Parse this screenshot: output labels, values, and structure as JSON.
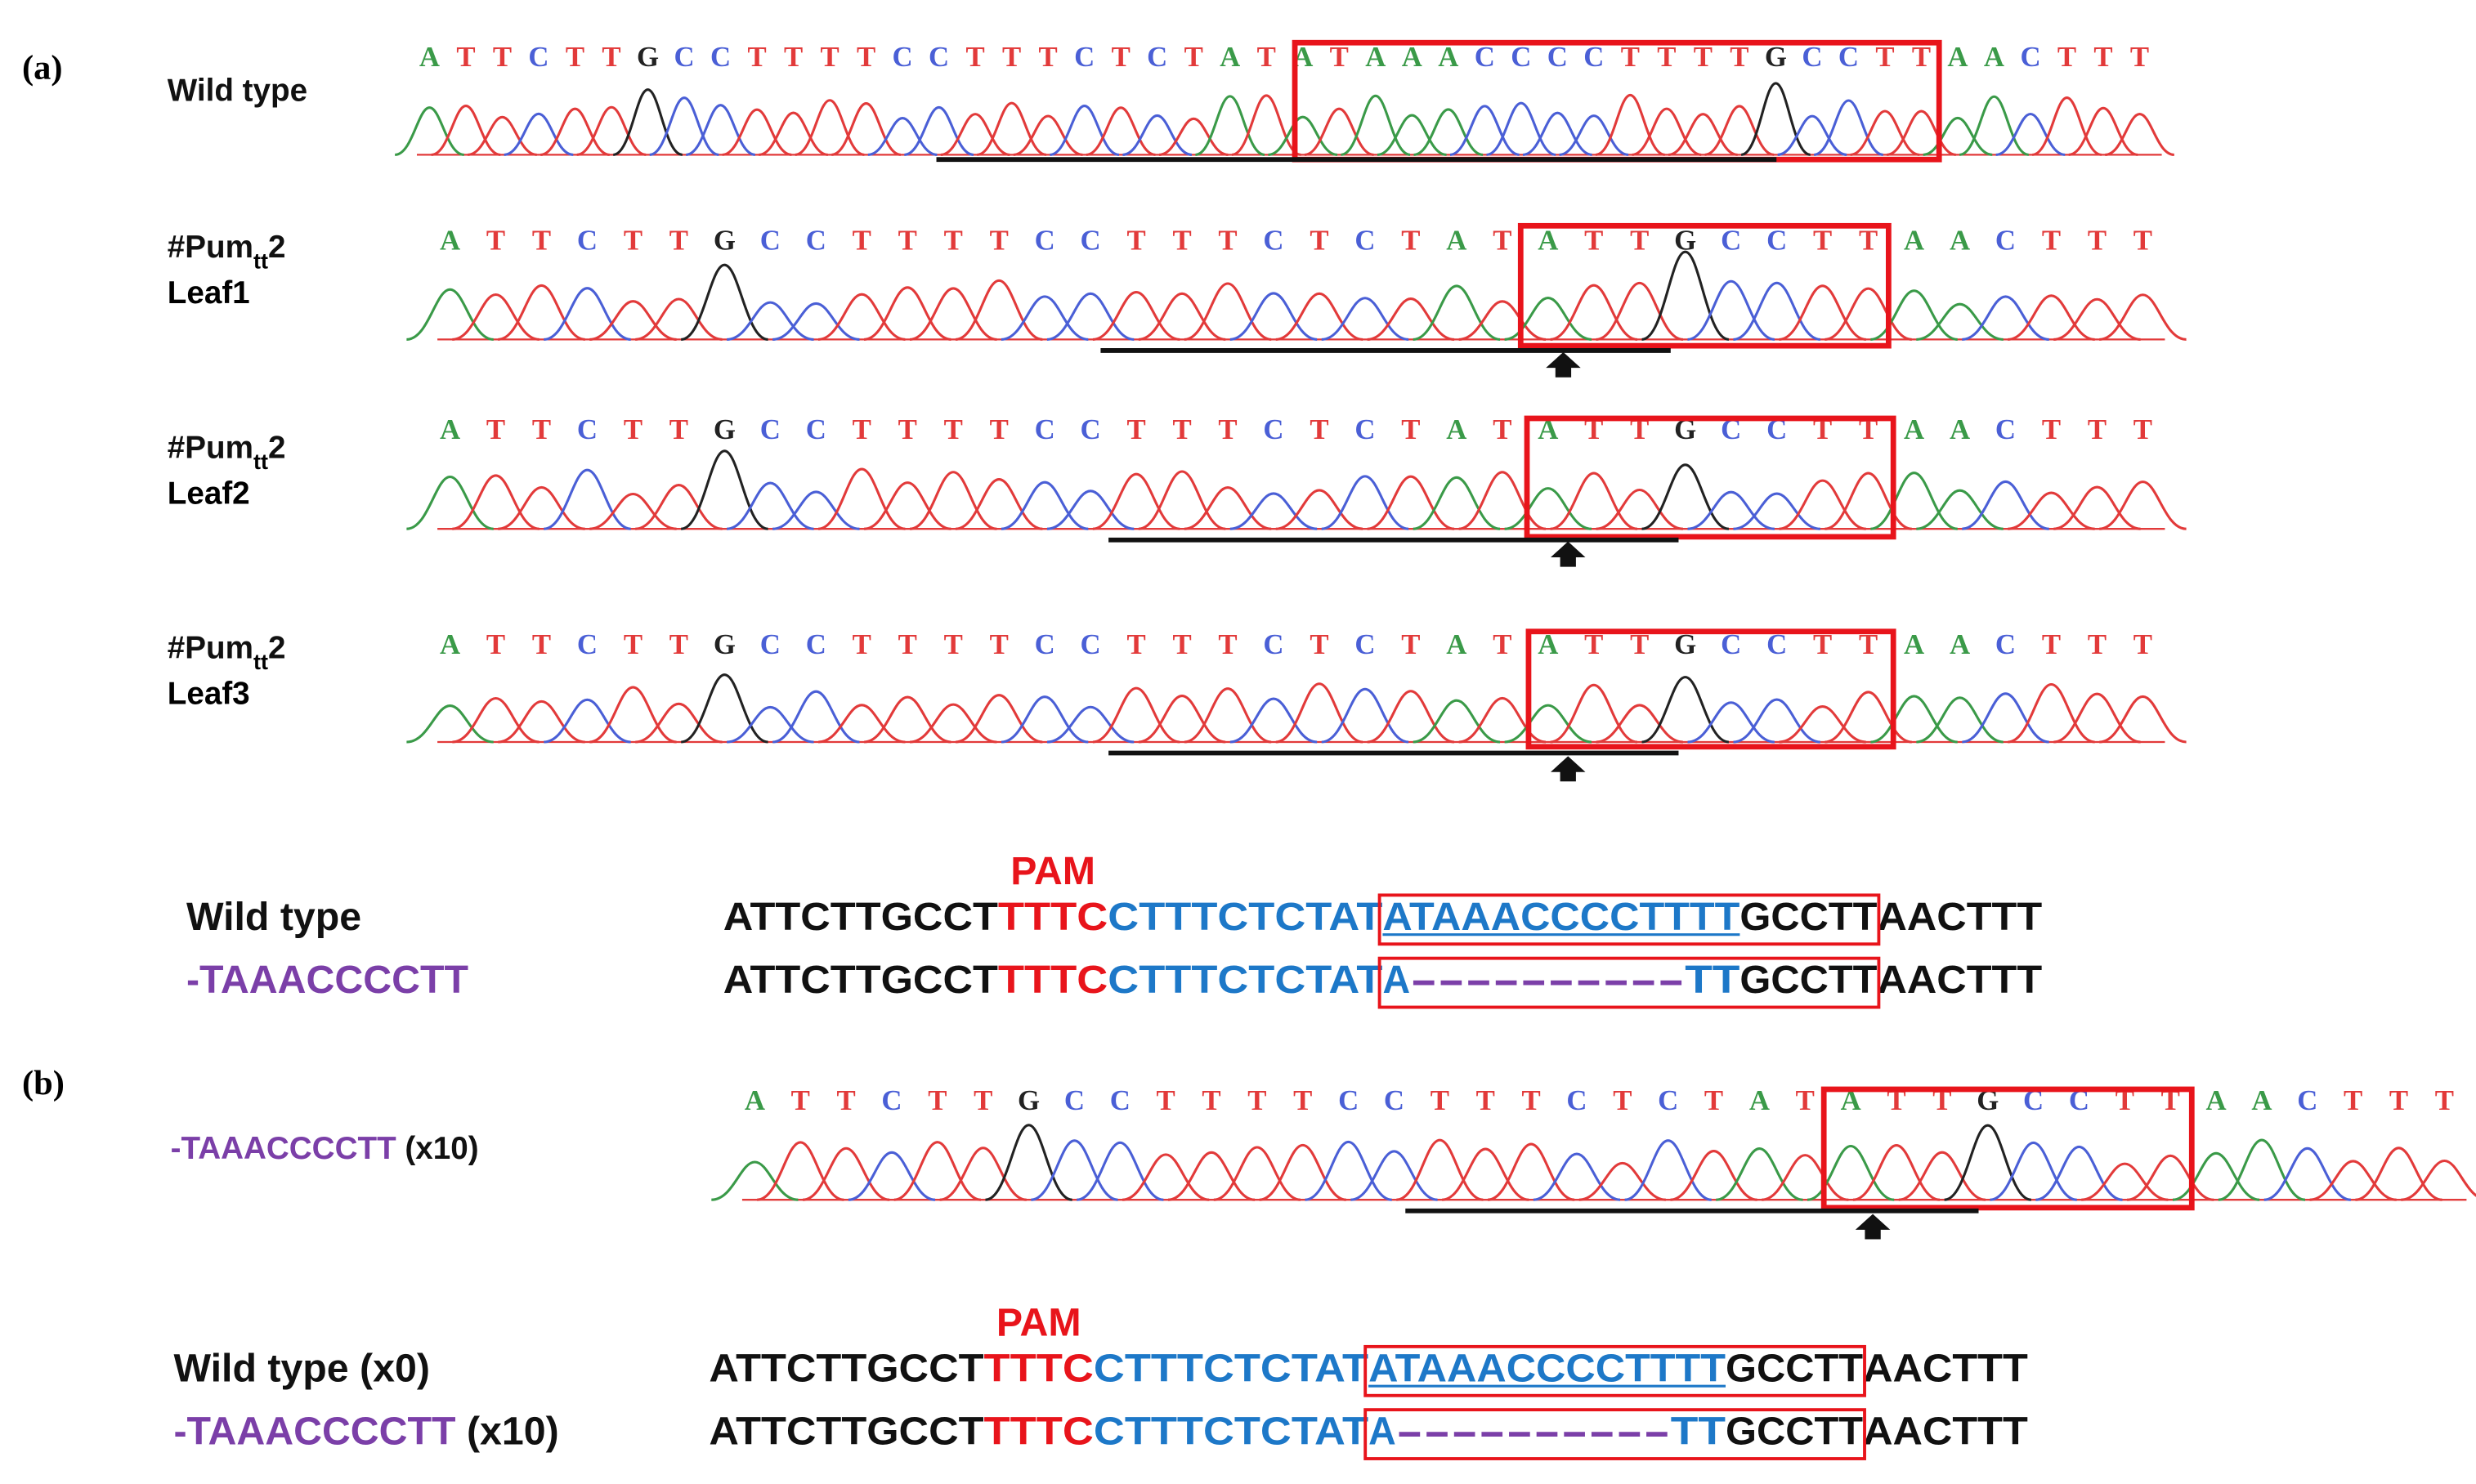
{
  "base_colors": {
    "A": "#3a9a48",
    "T": "#e23a3a",
    "C": "#4a5fd6",
    "G": "#222222"
  },
  "panel_a": {
    "label": "(a)",
    "traces": [
      {
        "name": {
          "text": "Wild type"
        },
        "bases": [
          "A",
          "T",
          "T",
          "C",
          "T",
          "T",
          "G",
          "C",
          "C",
          "T",
          "T",
          "T",
          "T",
          "C",
          "C",
          "T",
          "T",
          "T",
          "C",
          "T",
          "C",
          "T",
          "A",
          "T",
          "A",
          "T",
          "A",
          "A",
          "A",
          "C",
          "C",
          "C",
          "C",
          "T",
          "T",
          "T",
          "T",
          "G",
          "C",
          "C",
          "T",
          "T",
          "A",
          "A",
          "C",
          "T",
          "T",
          "T"
        ]
      },
      {
        "name": {
          "text": "#Pum",
          "sub": "tt",
          "suffix": "2"
        },
        "sample": "Leaf1",
        "bases": [
          "A",
          "T",
          "T",
          "C",
          "T",
          "T",
          "G",
          "C",
          "C",
          "T",
          "T",
          "T",
          "T",
          "C",
          "C",
          "T",
          "T",
          "T",
          "C",
          "T",
          "C",
          "T",
          "A",
          "T",
          "A",
          "T",
          "T",
          "G",
          "C",
          "C",
          "T",
          "T",
          "A",
          "A",
          "C",
          "T",
          "T",
          "T"
        ]
      },
      {
        "name": {
          "text": "#Pum",
          "sub": "tt",
          "suffix": "2"
        },
        "sample": "Leaf2",
        "bases": [
          "A",
          "T",
          "T",
          "C",
          "T",
          "T",
          "G",
          "C",
          "C",
          "T",
          "T",
          "T",
          "T",
          "C",
          "C",
          "T",
          "T",
          "T",
          "C",
          "T",
          "C",
          "T",
          "A",
          "T",
          "A",
          "T",
          "T",
          "G",
          "C",
          "C",
          "T",
          "T",
          "A",
          "A",
          "C",
          "T",
          "T",
          "T"
        ]
      },
      {
        "name": {
          "text": "#Pum",
          "sub": "tt",
          "suffix": "2"
        },
        "sample": "Leaf3",
        "bases": [
          "A",
          "T",
          "T",
          "C",
          "T",
          "T",
          "G",
          "C",
          "C",
          "T",
          "T",
          "T",
          "T",
          "C",
          "C",
          "T",
          "T",
          "T",
          "C",
          "T",
          "C",
          "T",
          "A",
          "T",
          "A",
          "T",
          "T",
          "G",
          "C",
          "C",
          "T",
          "T",
          "A",
          "A",
          "C",
          "T",
          "T",
          "T"
        ]
      }
    ],
    "alignment": {
      "pam": "PAM",
      "rows": [
        {
          "label": [
            {
              "text": "Wild type",
              "color": "#111111"
            }
          ],
          "segments": [
            {
              "text": "ATTCTTGCCT",
              "color": "#111111"
            },
            {
              "text": "TTTC",
              "color": "#e8141b"
            },
            {
              "text": "CTTTCTCTAT",
              "color": "#1d78c8"
            },
            {
              "text": "ATAAACCCCTTTT",
              "color": "#1d78c8",
              "underline": true
            },
            {
              "text": "GCCTT",
              "color": "#111111"
            },
            {
              "text": "AACTTT",
              "color": "#111111"
            }
          ]
        },
        {
          "label": [
            {
              "text": "-TAAACCCCTT",
              "color": "#7b3fa8"
            }
          ],
          "segments": [
            {
              "text": "ATTCTTGCCT",
              "color": "#111111"
            },
            {
              "text": "TTTC",
              "color": "#e8141b"
            },
            {
              "text": "CTTTCTCTAT",
              "color": "#1d78c8"
            },
            {
              "text": "A",
              "color": "#1d78c8"
            },
            {
              "text": "----------",
              "color": "#7b3fa8"
            },
            {
              "text": "TT",
              "color": "#1d78c8"
            },
            {
              "text": "GCCTT",
              "color": "#111111"
            },
            {
              "text": "AACTTT",
              "color": "#111111"
            }
          ]
        }
      ]
    }
  },
  "panel_b": {
    "label": "(b)",
    "traces": [
      {
        "name": {
          "text": "-TAAACCCCTT",
          "suffix": " (x10)"
        },
        "bases": [
          "A",
          "T",
          "T",
          "C",
          "T",
          "T",
          "G",
          "C",
          "C",
          "T",
          "T",
          "T",
          "T",
          "C",
          "C",
          "T",
          "T",
          "T",
          "C",
          "T",
          "C",
          "T",
          "A",
          "T",
          "A",
          "T",
          "T",
          "G",
          "C",
          "C",
          "T",
          "T",
          "A",
          "A",
          "C",
          "T",
          "T",
          "T"
        ]
      }
    ],
    "alignment": {
      "pam": "PAM",
      "rows": [
        {
          "label": [
            {
              "text": "Wild type (x0)",
              "color": "#111111"
            }
          ],
          "segments": [
            {
              "text": "ATTCTTGCCT",
              "color": "#111111"
            },
            {
              "text": "TTTC",
              "color": "#e8141b"
            },
            {
              "text": "CTTTCTCTAT",
              "color": "#1d78c8"
            },
            {
              "text": "ATAAACCCCTTTT",
              "color": "#1d78c8",
              "underline": true
            },
            {
              "text": "GCCTT",
              "color": "#111111"
            },
            {
              "text": "AACTTT",
              "color": "#111111"
            }
          ]
        },
        {
          "label": [
            {
              "text": "-TAAACCCCTT",
              "color": "#7b3fa8"
            },
            {
              "text": " (x10)",
              "color": "#111111"
            }
          ],
          "segments": [
            {
              "text": "ATTCTTGCCT",
              "color": "#111111"
            },
            {
              "text": "TTTC",
              "color": "#e8141b"
            },
            {
              "text": "CTTTCTCTAT",
              "color": "#1d78c8"
            },
            {
              "text": "A",
              "color": "#1d78c8"
            },
            {
              "text": "----------",
              "color": "#7b3fa8"
            },
            {
              "text": "TT",
              "color": "#1d78c8"
            },
            {
              "text": "GCCTT",
              "color": "#111111"
            },
            {
              "text": "AACTTT",
              "color": "#111111"
            }
          ]
        }
      ]
    }
  }
}
